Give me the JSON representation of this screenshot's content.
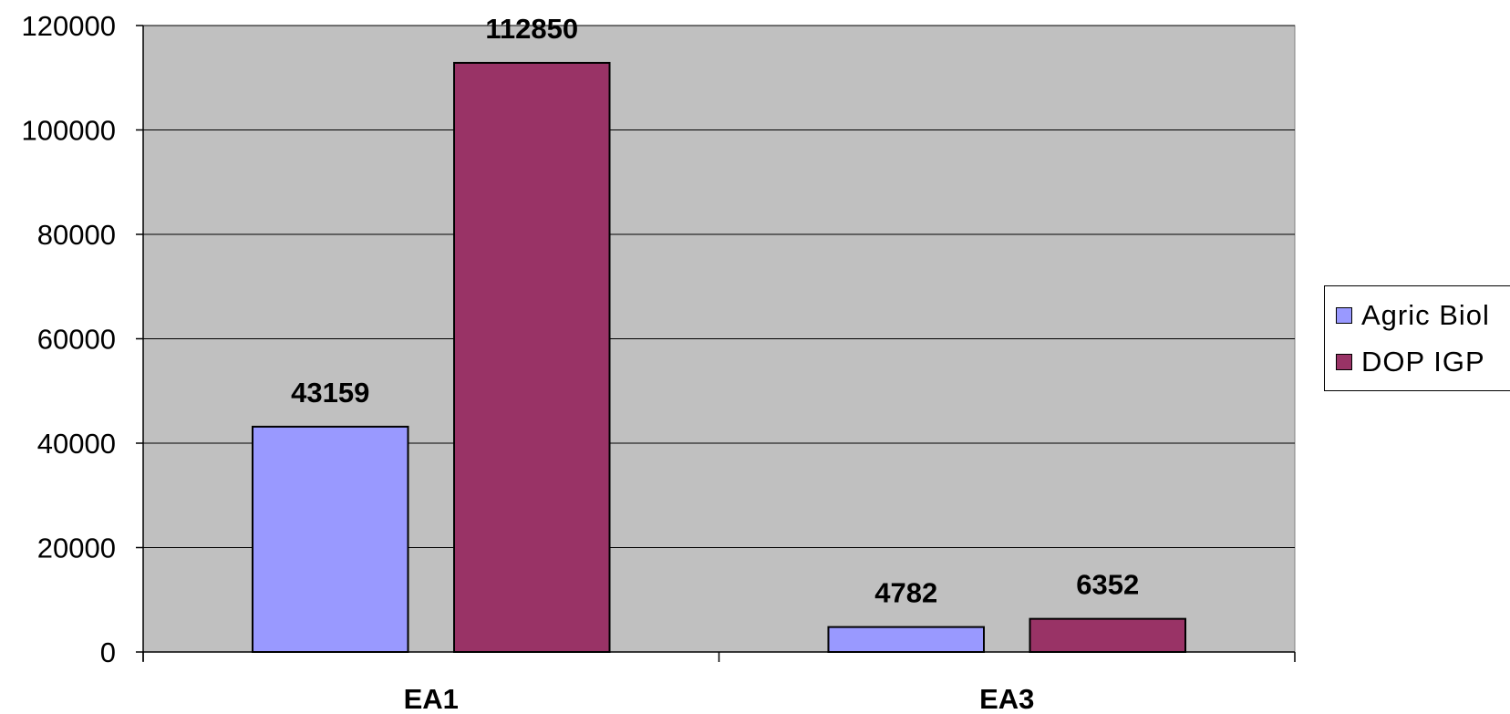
{
  "chart_data": {
    "type": "bar",
    "categories": [
      "EA1",
      "EA3"
    ],
    "series": [
      {
        "name": "Agric Biol",
        "values": [
          43159,
          4782
        ],
        "color": "#9999FF"
      },
      {
        "name": "DOP IGP",
        "values": [
          112850,
          6352
        ],
        "color": "#993366"
      }
    ],
    "ylim": [
      0,
      120000
    ],
    "yticks": [
      "0",
      "20000",
      "40000",
      "60000",
      "80000",
      "100000",
      "120000"
    ],
    "grid": true,
    "plot_background": "#C0C0C0",
    "legend_position": "right",
    "data_labels": true
  }
}
